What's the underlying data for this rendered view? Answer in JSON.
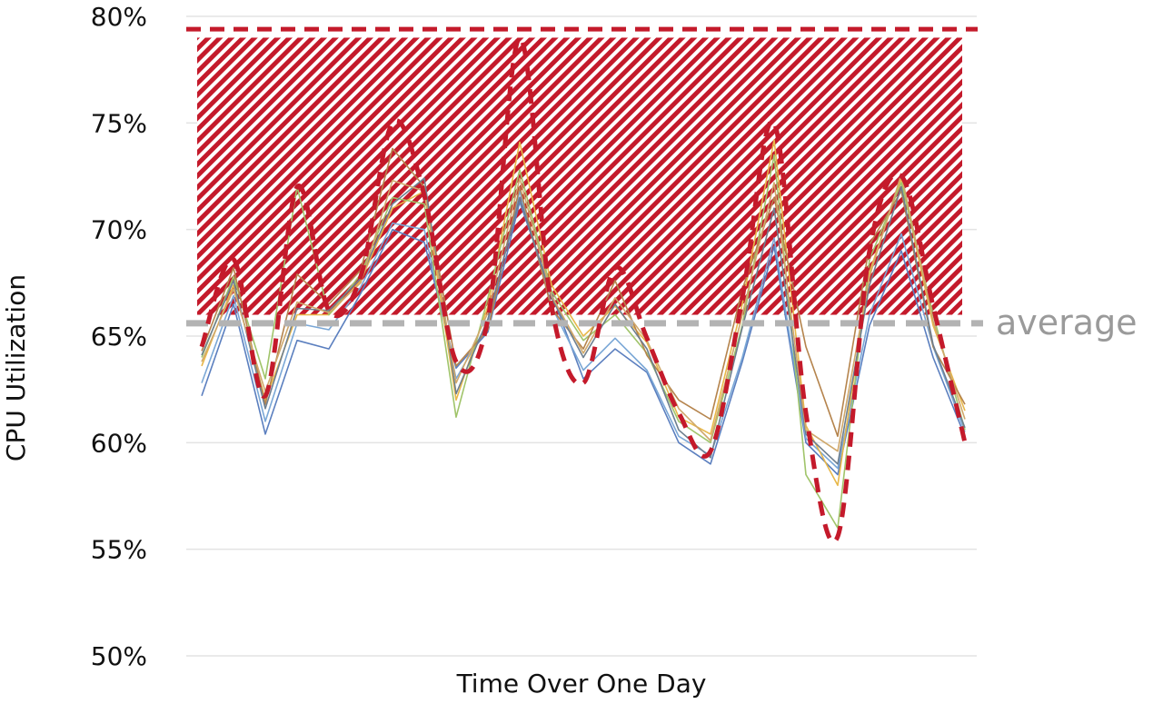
{
  "chart_data": {
    "type": "line",
    "title": "",
    "xlabel": "Time Over One Day",
    "ylabel": "CPU Utilization",
    "ylim": [
      50,
      80
    ],
    "yticks": [
      {
        "value": 50,
        "label": "50%"
      },
      {
        "value": 55,
        "label": "55%"
      },
      {
        "value": 60,
        "label": "60%"
      },
      {
        "value": 65,
        "label": "65%"
      },
      {
        "value": 70,
        "label": "70%"
      },
      {
        "value": 75,
        "label": "75%"
      },
      {
        "value": 80,
        "label": "80%"
      }
    ],
    "grid": true,
    "legend": "none",
    "x": [
      0,
      1,
      2,
      3,
      4,
      5,
      6,
      7,
      8,
      9,
      10,
      11,
      12,
      13,
      14,
      15,
      16,
      17,
      18,
      19,
      20,
      21,
      22,
      23,
      24,
      25,
      26,
      27,
      28,
      29,
      30,
      31,
      32,
      33,
      34,
      35,
      36,
      37,
      38,
      39,
      40
    ],
    "series": [
      {
        "color": "#5b7fbf",
        "values": [
          62.2,
          66.5,
          60.4,
          64.8,
          64.4,
          67,
          70,
          69.4,
          63.5,
          65.2,
          71.3,
          67,
          63,
          64.4,
          63.3,
          60,
          59,
          63.8,
          69.2,
          60,
          58.5,
          65.5,
          69,
          64,
          60.3,
          null,
          null,
          null,
          null,
          null,
          null,
          null,
          null,
          null,
          null,
          null,
          null,
          null,
          null,
          null,
          null
        ]
      },
      {
        "color": "#7aa7d6",
        "values": [
          62.8,
          66.9,
          61,
          65.6,
          65.3,
          67.3,
          70.3,
          70,
          63,
          65.6,
          71.8,
          66.4,
          63.4,
          64.9,
          63.4,
          60.3,
          59.4,
          64,
          69.6,
          60.2,
          58.8,
          66,
          69.8,
          64.5,
          60.5,
          null,
          null,
          null,
          null,
          null,
          null,
          null,
          null,
          null,
          null,
          null,
          null,
          null,
          null,
          null,
          null
        ]
      },
      {
        "color": "#e8b84a",
        "values": [
          63.6,
          67.4,
          62,
          66,
          66,
          67.6,
          71,
          71.8,
          62,
          66.4,
          74.1,
          67.4,
          65,
          66.4,
          64.7,
          61.2,
          60.4,
          66.5,
          74.2,
          60.8,
          58,
          68,
          72.4,
          65.5,
          61.5,
          null,
          null,
          null,
          null,
          null,
          null,
          null,
          null,
          null,
          null,
          null,
          null,
          null,
          null,
          null,
          null
        ]
      },
      {
        "color": "#a0c46a",
        "values": [
          64,
          67.8,
          63,
          72,
          66,
          67.9,
          71.5,
          71.2,
          61.2,
          66.8,
          72.8,
          67.1,
          64.8,
          66,
          64.2,
          61,
          60,
          65.5,
          73.5,
          58.5,
          56,
          68.6,
          72.2,
          66,
          60.6,
          null,
          null,
          null,
          null,
          null,
          null,
          null,
          null,
          null,
          null,
          null,
          null,
          null,
          null,
          null,
          null
        ]
      },
      {
        "color": "#b5844d",
        "values": [
          64.3,
          68.2,
          61.8,
          67.9,
          66.5,
          68.1,
          73.8,
          72,
          63.6,
          65.3,
          72,
          66.3,
          64.4,
          67.6,
          64.1,
          62,
          61.1,
          67.2,
          71.5,
          64.5,
          60.3,
          69.3,
          71.8,
          64.5,
          61.8,
          null,
          null,
          null,
          null,
          null,
          null,
          null,
          null,
          null,
          null,
          null,
          null,
          null,
          null,
          null,
          null
        ]
      },
      {
        "color": "#6e7f8f",
        "values": [
          64.1,
          67.6,
          61.6,
          66.3,
          66.2,
          67.7,
          71.2,
          72.4,
          62.3,
          65.8,
          71.5,
          66.8,
          64,
          66.5,
          64.4,
          60.6,
          59.3,
          65.4,
          71,
          60.4,
          59,
          67.4,
          72,
          64.6,
          60.7,
          null,
          null,
          null,
          null,
          null,
          null,
          null,
          null,
          null,
          null,
          null,
          null,
          null,
          null,
          null,
          null
        ]
      },
      {
        "color": "#cfa86b",
        "values": [
          63.8,
          67.2,
          62.4,
          66.6,
          66.1,
          67.5,
          72.3,
          71.8,
          62.8,
          66.1,
          72.4,
          66.9,
          64.2,
          66.8,
          64.8,
          61.6,
          60.1,
          66,
          72.2,
          60.6,
          59.6,
          67.8,
          72.6,
          65.7,
          61.1,
          null,
          null,
          null,
          null,
          null,
          null,
          null,
          null,
          null,
          null,
          null,
          null,
          null,
          null,
          null,
          null
        ]
      }
    ],
    "envelope": {
      "x": [
        0,
        1,
        2,
        3,
        4,
        5,
        6,
        7,
        8,
        9,
        10,
        11,
        12,
        13,
        14,
        15,
        16,
        17,
        18,
        19,
        20,
        21,
        22,
        23,
        24
      ],
      "upper": [
        64.5,
        68.6,
        62.2,
        72,
        66.2,
        67.8,
        75,
        71.6,
        63.8,
        65.8,
        79,
        66.4,
        62.8,
        68.2,
        64.9,
        61.4,
        59.6,
        66.8,
        75,
        61.4,
        55.6,
        69,
        72.5,
        66.4,
        60
      ],
      "lower": [
        63.5,
        67.6,
        61.2,
        71,
        65.2,
        66.8,
        74,
        61.2,
        61.2,
        64.8,
        78,
        65.4,
        61.8,
        67.2,
        63.9,
        60.4,
        58.6,
        65.8,
        74,
        60.4,
        55.6,
        68,
        71.5,
        65.4,
        60
      ]
    },
    "average": {
      "value": 65.6,
      "label": "average"
    },
    "max_line": {
      "value": 79.4
    },
    "shaded_region": {
      "from": 66.0,
      "to": 79.0
    }
  }
}
